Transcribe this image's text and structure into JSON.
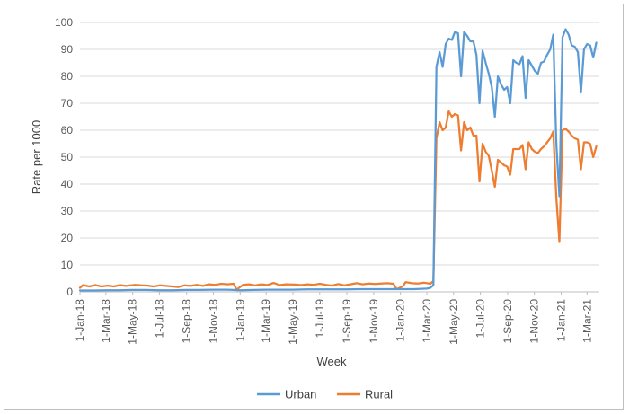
{
  "chart_data": {
    "type": "line",
    "title": "",
    "xlabel": "Week",
    "ylabel": "Rate per 1000",
    "ylim": [
      0,
      100
    ],
    "yticks": [
      0,
      10,
      20,
      30,
      40,
      50,
      60,
      70,
      80,
      90,
      100
    ],
    "xlim": [
      "2018-01-01",
      "2021-03-29"
    ],
    "xtick_labels": [
      "1-Jan-18",
      "1-Mar-18",
      "1-May-18",
      "1-Jul-18",
      "1-Sep-18",
      "1-Nov-18",
      "1-Jan-19",
      "1-Mar-19",
      "1-May-19",
      "1-Jul-19",
      "1-Sep-19",
      "1-Nov-19",
      "1-Jan-20",
      "1-Mar-20",
      "1-May-20",
      "1-Jul-20",
      "1-Sep-20",
      "1-Nov-20",
      "1-Jan-21",
      "1-Mar-21"
    ],
    "xtick_dates": [
      "2018-01-01",
      "2018-03-01",
      "2018-05-01",
      "2018-07-01",
      "2018-09-01",
      "2018-11-01",
      "2019-01-01",
      "2019-03-01",
      "2019-05-01",
      "2019-07-01",
      "2019-09-01",
      "2019-11-01",
      "2020-01-01",
      "2020-03-01",
      "2020-05-01",
      "2020-07-01",
      "2020-09-01",
      "2020-11-01",
      "2021-01-01",
      "2021-03-01"
    ],
    "grid": "horizontal",
    "legend": "bottom",
    "series": [
      {
        "name": "Urban",
        "color": "#5b9bd5",
        "points": [
          [
            "2018-01-01",
            0.5
          ],
          [
            "2018-02-01",
            0.5
          ],
          [
            "2018-03-01",
            0.6
          ],
          [
            "2018-04-01",
            0.6
          ],
          [
            "2018-05-01",
            0.7
          ],
          [
            "2018-06-01",
            0.7
          ],
          [
            "2018-07-01",
            0.6
          ],
          [
            "2018-08-01",
            0.6
          ],
          [
            "2018-09-01",
            0.7
          ],
          [
            "2018-10-01",
            0.7
          ],
          [
            "2018-11-01",
            0.8
          ],
          [
            "2018-12-01",
            0.8
          ],
          [
            "2019-01-01",
            0.6
          ],
          [
            "2019-02-01",
            0.7
          ],
          [
            "2019-03-01",
            0.8
          ],
          [
            "2019-04-01",
            0.8
          ],
          [
            "2019-05-01",
            0.8
          ],
          [
            "2019-06-01",
            0.9
          ],
          [
            "2019-07-01",
            0.9
          ],
          [
            "2019-08-01",
            0.9
          ],
          [
            "2019-09-01",
            0.9
          ],
          [
            "2019-10-01",
            1.0
          ],
          [
            "2019-11-01",
            1.0
          ],
          [
            "2019-12-01",
            1.0
          ],
          [
            "2020-01-01",
            1.0
          ],
          [
            "2020-02-01",
            1.0
          ],
          [
            "2020-03-01",
            1.2
          ],
          [
            "2020-03-09",
            1.5
          ],
          [
            "2020-03-16",
            2.5
          ],
          [
            "2020-03-23",
            83.5
          ],
          [
            "2020-03-30",
            89
          ],
          [
            "2020-04-06",
            83.5
          ],
          [
            "2020-04-13",
            92
          ],
          [
            "2020-04-20",
            94
          ],
          [
            "2020-04-27",
            93.5
          ],
          [
            "2020-05-04",
            96.5
          ],
          [
            "2020-05-11",
            96
          ],
          [
            "2020-05-18",
            80
          ],
          [
            "2020-05-25",
            96.5
          ],
          [
            "2020-06-01",
            95
          ],
          [
            "2020-06-08",
            93
          ],
          [
            "2020-06-15",
            93
          ],
          [
            "2020-06-22",
            88
          ],
          [
            "2020-06-29",
            70
          ],
          [
            "2020-07-06",
            89.5
          ],
          [
            "2020-07-13",
            85
          ],
          [
            "2020-07-20",
            81
          ],
          [
            "2020-07-27",
            76
          ],
          [
            "2020-08-03",
            65
          ],
          [
            "2020-08-10",
            80
          ],
          [
            "2020-08-17",
            77
          ],
          [
            "2020-08-24",
            75
          ],
          [
            "2020-08-31",
            76
          ],
          [
            "2020-09-07",
            70
          ],
          [
            "2020-09-14",
            86
          ],
          [
            "2020-09-21",
            85
          ],
          [
            "2020-09-28",
            84.5
          ],
          [
            "2020-10-05",
            87.5
          ],
          [
            "2020-10-12",
            72
          ],
          [
            "2020-10-19",
            86
          ],
          [
            "2020-10-26",
            84
          ],
          [
            "2020-11-02",
            82
          ],
          [
            "2020-11-09",
            81
          ],
          [
            "2020-11-16",
            85
          ],
          [
            "2020-11-23",
            85.5
          ],
          [
            "2020-11-30",
            88
          ],
          [
            "2020-12-07",
            90
          ],
          [
            "2020-12-14",
            95.5
          ],
          [
            "2020-12-21",
            55
          ],
          [
            "2020-12-28",
            35.5
          ],
          [
            "2021-01-04",
            94.5
          ],
          [
            "2021-01-11",
            97.5
          ],
          [
            "2021-01-18",
            95.5
          ],
          [
            "2021-01-25",
            91.5
          ],
          [
            "2021-02-01",
            91
          ],
          [
            "2021-02-08",
            89
          ],
          [
            "2021-02-15",
            74
          ],
          [
            "2021-02-22",
            90
          ],
          [
            "2021-03-01",
            92
          ],
          [
            "2021-03-08",
            91.5
          ],
          [
            "2021-03-15",
            87
          ],
          [
            "2021-03-22",
            92.5
          ]
        ]
      },
      {
        "name": "Rural",
        "color": "#ed7d31",
        "points": [
          [
            "2018-01-01",
            1.5
          ],
          [
            "2018-01-08",
            2.5
          ],
          [
            "2018-01-22",
            2
          ],
          [
            "2018-02-05",
            2.5
          ],
          [
            "2018-02-19",
            2
          ],
          [
            "2018-03-05",
            2.3
          ],
          [
            "2018-03-19",
            2
          ],
          [
            "2018-04-02",
            2.5
          ],
          [
            "2018-04-16",
            2.2
          ],
          [
            "2018-05-07",
            2.6
          ],
          [
            "2018-05-21",
            2.4
          ],
          [
            "2018-06-04",
            2.3
          ],
          [
            "2018-06-18",
            2
          ],
          [
            "2018-07-02",
            2.4
          ],
          [
            "2018-07-16",
            2.2
          ],
          [
            "2018-07-30",
            2
          ],
          [
            "2018-08-13",
            1.8
          ],
          [
            "2018-08-27",
            2.4
          ],
          [
            "2018-09-10",
            2.2
          ],
          [
            "2018-09-24",
            2.6
          ],
          [
            "2018-10-08",
            2.2
          ],
          [
            "2018-10-22",
            2.8
          ],
          [
            "2018-11-05",
            2.6
          ],
          [
            "2018-11-19",
            3
          ],
          [
            "2018-12-03",
            2.8
          ],
          [
            "2018-12-17",
            3
          ],
          [
            "2018-12-24",
            0.8
          ],
          [
            "2019-01-07",
            2.6
          ],
          [
            "2019-01-21",
            2.8
          ],
          [
            "2019-02-04",
            2.4
          ],
          [
            "2019-02-18",
            2.8
          ],
          [
            "2019-03-04",
            2.5
          ],
          [
            "2019-03-18",
            3.3
          ],
          [
            "2019-04-01",
            2.5
          ],
          [
            "2019-04-15",
            2.8
          ],
          [
            "2019-05-06",
            2.7
          ],
          [
            "2019-05-20",
            2.5
          ],
          [
            "2019-06-03",
            2.8
          ],
          [
            "2019-06-17",
            2.6
          ],
          [
            "2019-07-01",
            3
          ],
          [
            "2019-07-15",
            2.6
          ],
          [
            "2019-07-29",
            2.3
          ],
          [
            "2019-08-12",
            2.9
          ],
          [
            "2019-08-26",
            2.4
          ],
          [
            "2019-09-09",
            2.8
          ],
          [
            "2019-09-23",
            3.2
          ],
          [
            "2019-10-07",
            2.8
          ],
          [
            "2019-10-21",
            3.1
          ],
          [
            "2019-11-04",
            2.9
          ],
          [
            "2019-11-18",
            3.1
          ],
          [
            "2019-12-02",
            3.2
          ],
          [
            "2019-12-16",
            3
          ],
          [
            "2019-12-23",
            1
          ],
          [
            "2020-01-06",
            2
          ],
          [
            "2020-01-13",
            3.6
          ],
          [
            "2020-01-27",
            3.2
          ],
          [
            "2020-02-10",
            3.1
          ],
          [
            "2020-02-24",
            3.4
          ],
          [
            "2020-03-09",
            3
          ],
          [
            "2020-03-16",
            4
          ],
          [
            "2020-03-23",
            57
          ],
          [
            "2020-03-30",
            63
          ],
          [
            "2020-04-06",
            60
          ],
          [
            "2020-04-13",
            61
          ],
          [
            "2020-04-20",
            67
          ],
          [
            "2020-04-27",
            65
          ],
          [
            "2020-05-04",
            66
          ],
          [
            "2020-05-11",
            65.5
          ],
          [
            "2020-05-18",
            52.5
          ],
          [
            "2020-05-25",
            63
          ],
          [
            "2020-06-01",
            60
          ],
          [
            "2020-06-08",
            61
          ],
          [
            "2020-06-15",
            58
          ],
          [
            "2020-06-22",
            58
          ],
          [
            "2020-06-29",
            41
          ],
          [
            "2020-07-06",
            55
          ],
          [
            "2020-07-13",
            52
          ],
          [
            "2020-07-20",
            50.5
          ],
          [
            "2020-07-27",
            45
          ],
          [
            "2020-08-03",
            39
          ],
          [
            "2020-08-10",
            49
          ],
          [
            "2020-08-17",
            48
          ],
          [
            "2020-08-24",
            47
          ],
          [
            "2020-08-31",
            46.5
          ],
          [
            "2020-09-07",
            43.5
          ],
          [
            "2020-09-14",
            53
          ],
          [
            "2020-09-21",
            53
          ],
          [
            "2020-09-28",
            53
          ],
          [
            "2020-10-05",
            54.5
          ],
          [
            "2020-10-12",
            45.5
          ],
          [
            "2020-10-19",
            55.5
          ],
          [
            "2020-10-26",
            53
          ],
          [
            "2020-11-02",
            52
          ],
          [
            "2020-11-09",
            51.5
          ],
          [
            "2020-11-16",
            53
          ],
          [
            "2020-11-23",
            54
          ],
          [
            "2020-11-30",
            55.5
          ],
          [
            "2020-12-07",
            57
          ],
          [
            "2020-12-14",
            59.5
          ],
          [
            "2020-12-21",
            35
          ],
          [
            "2020-12-28",
            18.5
          ],
          [
            "2021-01-04",
            60
          ],
          [
            "2021-01-11",
            60.5
          ],
          [
            "2021-01-18",
            59.5
          ],
          [
            "2021-01-25",
            58
          ],
          [
            "2021-02-01",
            57
          ],
          [
            "2021-02-08",
            56.5
          ],
          [
            "2021-02-15",
            45.5
          ],
          [
            "2021-02-22",
            55.5
          ],
          [
            "2021-03-01",
            55.5
          ],
          [
            "2021-03-08",
            55
          ],
          [
            "2021-03-15",
            50
          ],
          [
            "2021-03-22",
            54
          ]
        ]
      }
    ]
  }
}
